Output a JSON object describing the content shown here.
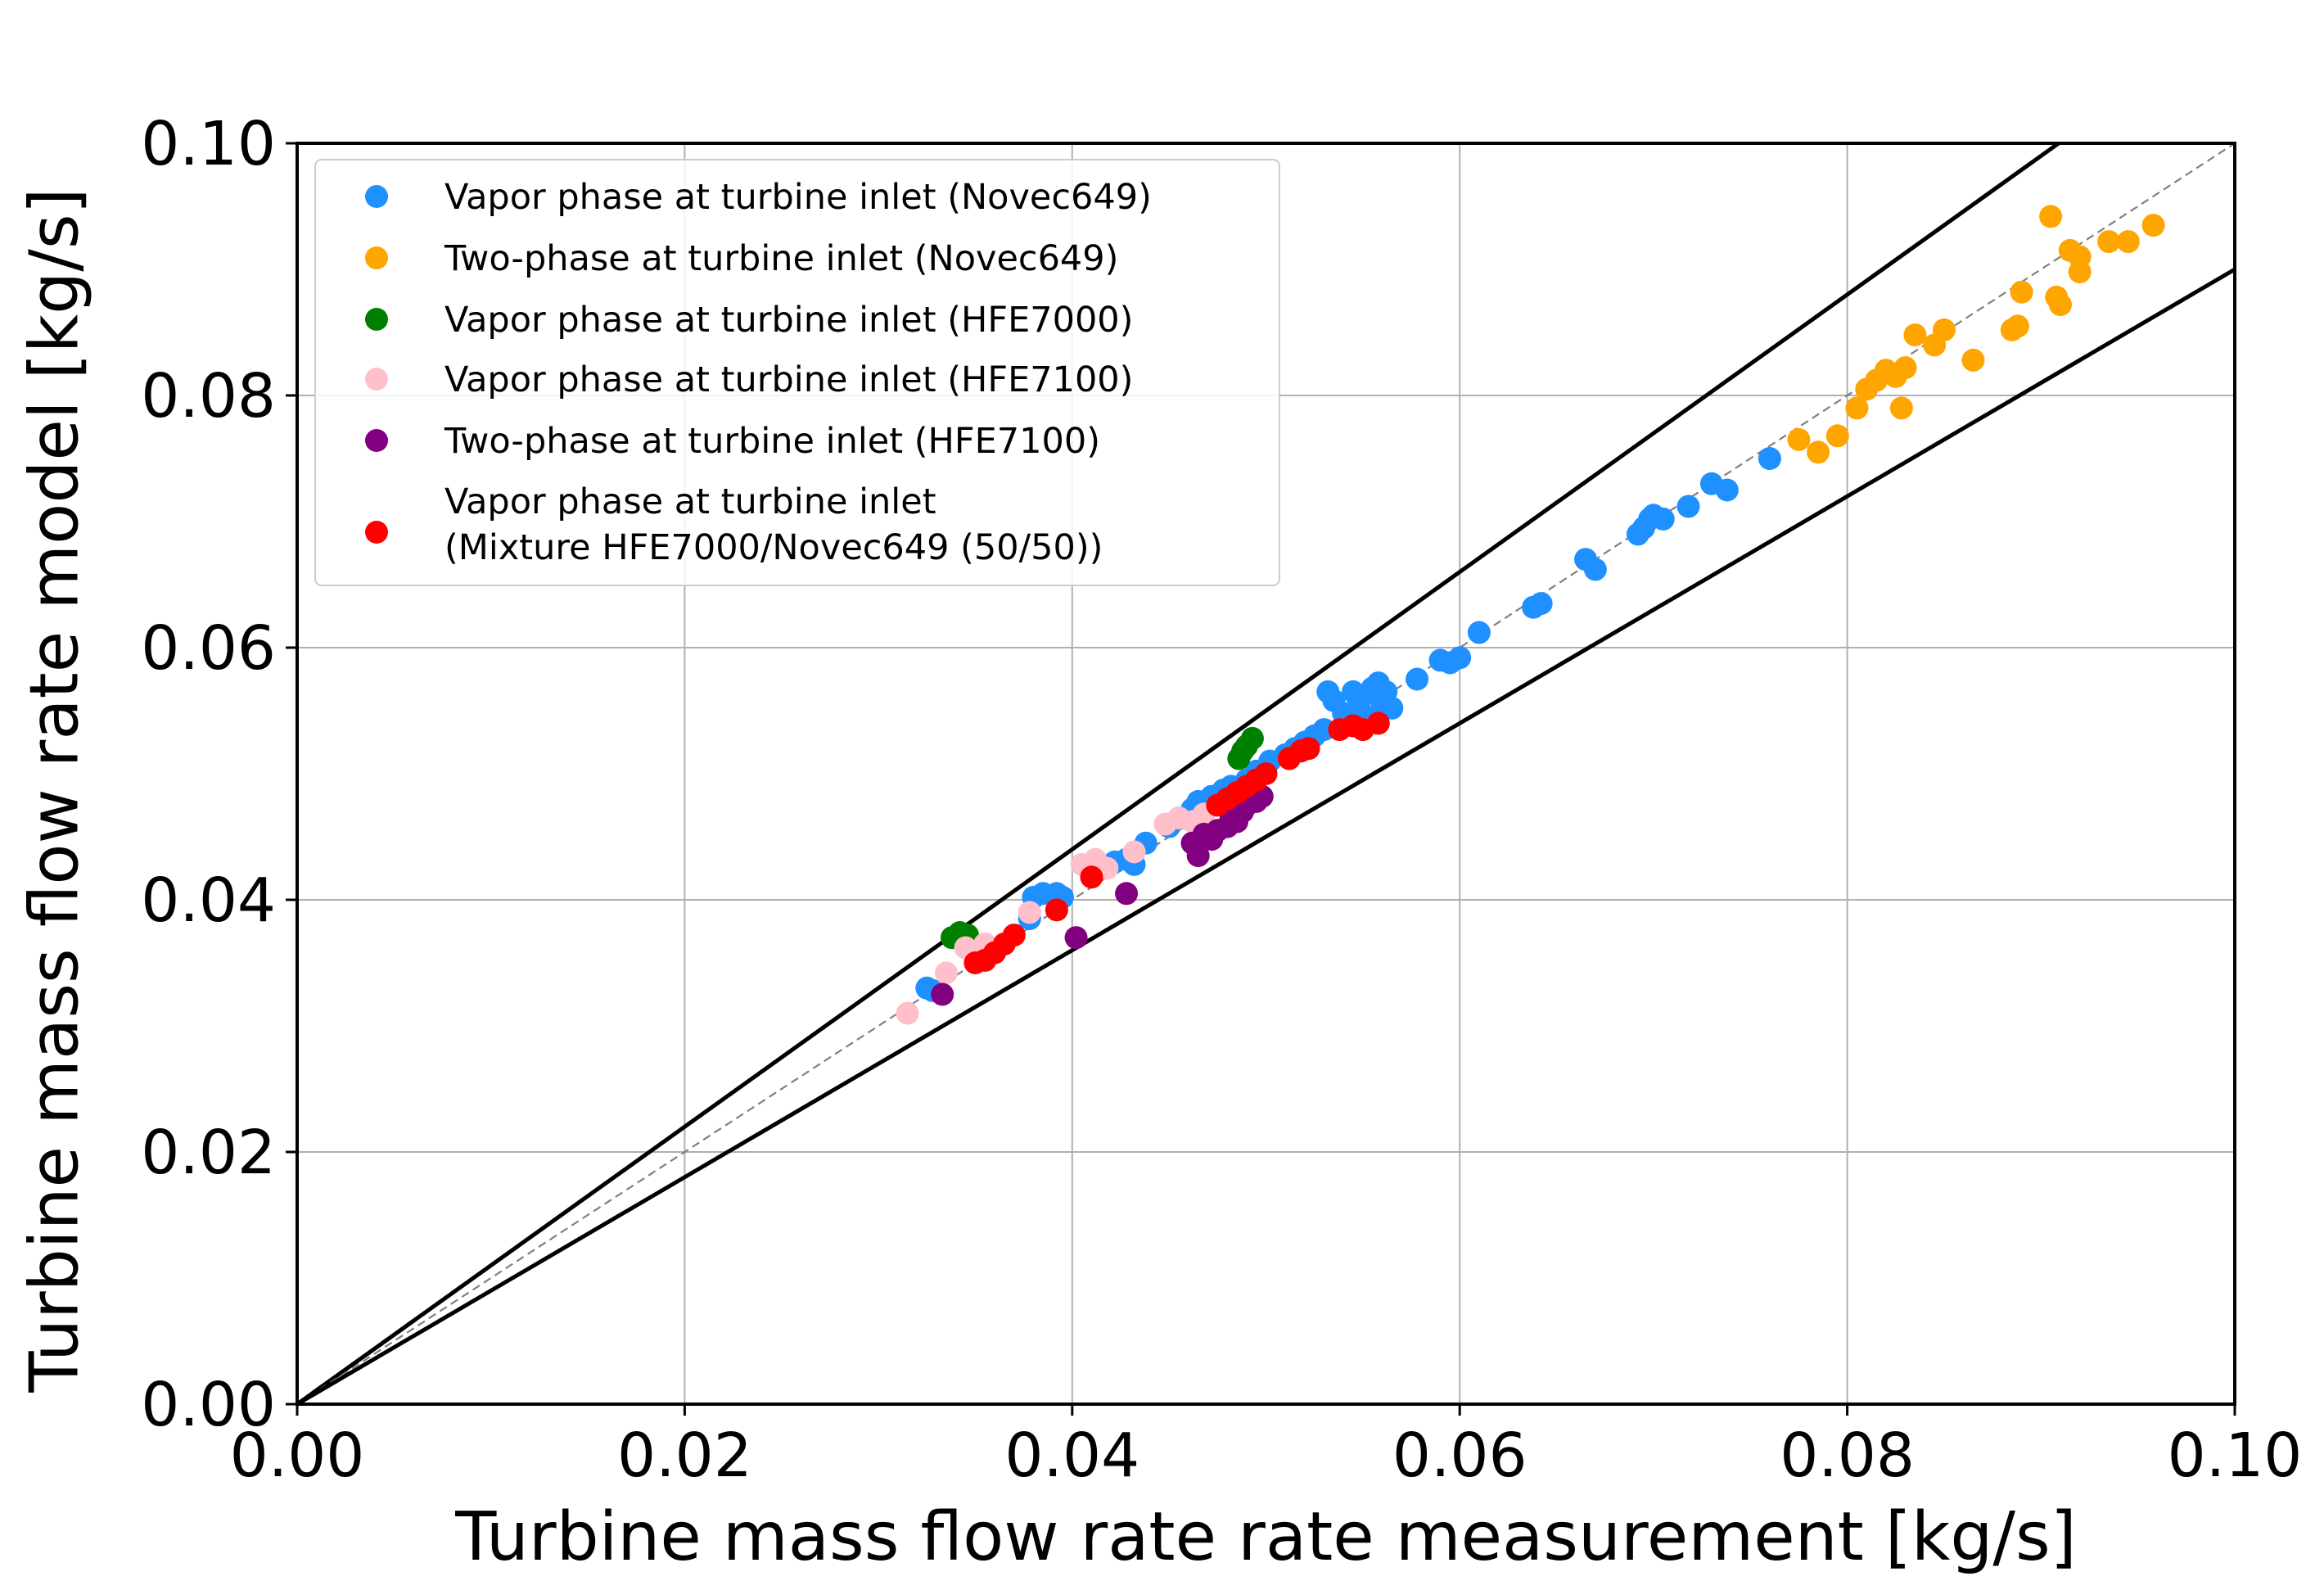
{
  "chart_data": {
    "type": "scatter",
    "title": "",
    "xlabel": "Turbine mass flow rate rate measurement [kg/s]",
    "ylabel": "Turbine mass flow rate model [kg/s]",
    "xlim": [
      0.0,
      0.1
    ],
    "ylim": [
      0.0,
      0.1
    ],
    "xticks": [
      "0.00",
      "0.02",
      "0.04",
      "0.06",
      "0.08",
      "0.10"
    ],
    "yticks": [
      "0.00",
      "0.02",
      "0.04",
      "0.06",
      "0.08",
      "0.10"
    ],
    "xtick_values": [
      0.0,
      0.02,
      0.04,
      0.06,
      0.08,
      0.1
    ],
    "ytick_values": [
      0.0,
      0.02,
      0.04,
      0.06,
      0.08,
      0.1
    ],
    "grid": true,
    "legend_position": "top-left",
    "reference_lines": [
      {
        "name": "upper bound",
        "slope": 1.1,
        "style": "solid",
        "color": "#000000"
      },
      {
        "name": "parity",
        "slope": 1.0,
        "style": "dashed",
        "color": "#808080"
      },
      {
        "name": "lower bound",
        "slope": 0.9,
        "style": "solid",
        "color": "#000000"
      }
    ],
    "series": [
      {
        "name": "Vapor phase at turbine inlet (Novec649)",
        "legend_lines": [
          "Vapor phase at turbine inlet (Novec649)"
        ],
        "color": "#1e90ff",
        "points": [
          [
            0.0325,
            0.033
          ],
          [
            0.0328,
            0.0328
          ],
          [
            0.0378,
            0.0385
          ],
          [
            0.038,
            0.0402
          ],
          [
            0.0385,
            0.0405
          ],
          [
            0.0392,
            0.0405
          ],
          [
            0.0395,
            0.0402
          ],
          [
            0.042,
            0.0428
          ],
          [
            0.0422,
            0.043
          ],
          [
            0.0428,
            0.0432
          ],
          [
            0.0432,
            0.0428
          ],
          [
            0.0438,
            0.0445
          ],
          [
            0.045,
            0.0458
          ],
          [
            0.0458,
            0.0465
          ],
          [
            0.0462,
            0.0472
          ],
          [
            0.0465,
            0.0478
          ],
          [
            0.0472,
            0.0482
          ],
          [
            0.0478,
            0.0487
          ],
          [
            0.0482,
            0.049
          ],
          [
            0.049,
            0.0495
          ],
          [
            0.0495,
            0.0502
          ],
          [
            0.0502,
            0.051
          ],
          [
            0.051,
            0.0515
          ],
          [
            0.0515,
            0.052
          ],
          [
            0.052,
            0.0525
          ],
          [
            0.0525,
            0.053
          ],
          [
            0.053,
            0.0535
          ],
          [
            0.0532,
            0.0565
          ],
          [
            0.0535,
            0.0558
          ],
          [
            0.054,
            0.0548
          ],
          [
            0.0545,
            0.0565
          ],
          [
            0.0548,
            0.0555
          ],
          [
            0.055,
            0.0562
          ],
          [
            0.0552,
            0.0545
          ],
          [
            0.0555,
            0.0568
          ],
          [
            0.0558,
            0.0572
          ],
          [
            0.056,
            0.0555
          ],
          [
            0.0562,
            0.0565
          ],
          [
            0.0565,
            0.0552
          ],
          [
            0.0578,
            0.0575
          ],
          [
            0.059,
            0.059
          ],
          [
            0.0595,
            0.0588
          ],
          [
            0.06,
            0.0592
          ],
          [
            0.061,
            0.0612
          ],
          [
            0.0638,
            0.0632
          ],
          [
            0.0642,
            0.0635
          ],
          [
            0.0665,
            0.067
          ],
          [
            0.067,
            0.0662
          ],
          [
            0.0692,
            0.069
          ],
          [
            0.0695,
            0.0695
          ],
          [
            0.0698,
            0.0702
          ],
          [
            0.07,
            0.0705
          ],
          [
            0.0705,
            0.0702
          ],
          [
            0.0718,
            0.0712
          ],
          [
            0.073,
            0.073
          ],
          [
            0.0738,
            0.0725
          ],
          [
            0.076,
            0.075
          ]
        ]
      },
      {
        "name": "Two-phase at turbine inlet (Novec649)",
        "legend_lines": [
          "Two-phase at turbine inlet (Novec649)"
        ],
        "color": "#ffa500",
        "points": [
          [
            0.0775,
            0.0765
          ],
          [
            0.0785,
            0.0755
          ],
          [
            0.0795,
            0.0768
          ],
          [
            0.0805,
            0.079
          ],
          [
            0.081,
            0.0805
          ],
          [
            0.0815,
            0.0812
          ],
          [
            0.082,
            0.082
          ],
          [
            0.0825,
            0.0815
          ],
          [
            0.083,
            0.0822
          ],
          [
            0.0828,
            0.079
          ],
          [
            0.0835,
            0.0848
          ],
          [
            0.0845,
            0.084
          ],
          [
            0.085,
            0.0852
          ],
          [
            0.0865,
            0.0828
          ],
          [
            0.0885,
            0.0852
          ],
          [
            0.0888,
            0.0855
          ],
          [
            0.089,
            0.0882
          ],
          [
            0.0905,
            0.0942
          ],
          [
            0.0908,
            0.0878
          ],
          [
            0.091,
            0.0872
          ],
          [
            0.0915,
            0.0915
          ],
          [
            0.092,
            0.0898
          ],
          [
            0.092,
            0.091
          ],
          [
            0.0935,
            0.0922
          ],
          [
            0.0945,
            0.0922
          ],
          [
            0.0958,
            0.0935
          ]
        ]
      },
      {
        "name": "Vapor phase at turbine inlet (HFE7000)",
        "legend_lines": [
          "Vapor phase at turbine inlet (HFE7000)"
        ],
        "color": "#008000",
        "points": [
          [
            0.0338,
            0.037
          ],
          [
            0.0342,
            0.0374
          ],
          [
            0.0346,
            0.0372
          ],
          [
            0.0486,
            0.0512
          ],
          [
            0.049,
            0.0522
          ],
          [
            0.0493,
            0.0528
          ],
          [
            0.0488,
            0.0518
          ]
        ]
      },
      {
        "name": "Vapor phase at turbine inlet (HFE7100)",
        "legend_lines": [
          "Vapor phase at turbine inlet (HFE7100)"
        ],
        "color": "#ffc0cb",
        "points": [
          [
            0.0315,
            0.031
          ],
          [
            0.0335,
            0.0342
          ],
          [
            0.0345,
            0.0362
          ],
          [
            0.0355,
            0.0365
          ],
          [
            0.0378,
            0.039
          ],
          [
            0.0405,
            0.0428
          ],
          [
            0.0412,
            0.0432
          ],
          [
            0.0418,
            0.0425
          ],
          [
            0.0432,
            0.0438
          ],
          [
            0.0448,
            0.046
          ],
          [
            0.0455,
            0.0465
          ],
          [
            0.0462,
            0.0462
          ],
          [
            0.0468,
            0.0468
          ]
        ]
      },
      {
        "name": "Two-phase at turbine inlet (HFE7100)",
        "legend_lines": [
          "Two-phase at turbine inlet (HFE7100)"
        ],
        "color": "#800080",
        "points": [
          [
            0.0333,
            0.0325
          ],
          [
            0.0402,
            0.037
          ],
          [
            0.0428,
            0.0405
          ],
          [
            0.0465,
            0.0435
          ],
          [
            0.0462,
            0.0445
          ],
          [
            0.0468,
            0.0452
          ],
          [
            0.0472,
            0.0448
          ],
          [
            0.0475,
            0.0455
          ],
          [
            0.048,
            0.0458
          ],
          [
            0.0482,
            0.0465
          ],
          [
            0.0485,
            0.0462
          ],
          [
            0.0488,
            0.047
          ],
          [
            0.049,
            0.0475
          ],
          [
            0.0495,
            0.0478
          ],
          [
            0.0498,
            0.0482
          ]
        ]
      },
      {
        "name": "Vapor phase at turbine inlet (Mixture HFE7000/Novec649 (50/50))",
        "legend_lines": [
          "Vapor phase at turbine inlet",
          "(Mixture HFE7000/Novec649 (50/50))"
        ],
        "color": "#ff0000",
        "points": [
          [
            0.035,
            0.035
          ],
          [
            0.0355,
            0.0352
          ],
          [
            0.036,
            0.0358
          ],
          [
            0.0365,
            0.0365
          ],
          [
            0.037,
            0.0372
          ],
          [
            0.0392,
            0.0392
          ],
          [
            0.041,
            0.0418
          ],
          [
            0.0475,
            0.0475
          ],
          [
            0.048,
            0.048
          ],
          [
            0.0485,
            0.0485
          ],
          [
            0.049,
            0.049
          ],
          [
            0.0495,
            0.0495
          ],
          [
            0.05,
            0.05
          ],
          [
            0.0512,
            0.0512
          ],
          [
            0.0518,
            0.0518
          ],
          [
            0.0522,
            0.052
          ],
          [
            0.0538,
            0.0535
          ],
          [
            0.0545,
            0.0538
          ],
          [
            0.055,
            0.0535
          ],
          [
            0.0558,
            0.054
          ]
        ]
      }
    ]
  }
}
